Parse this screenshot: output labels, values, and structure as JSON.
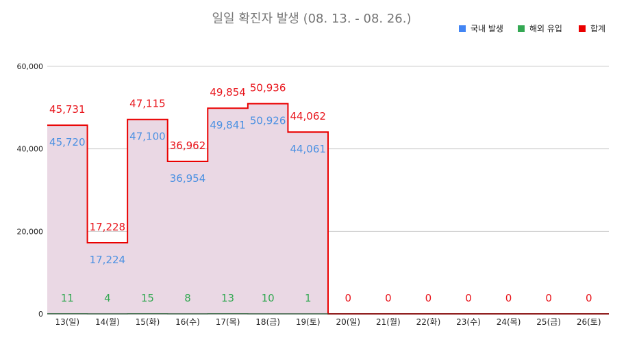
{
  "chart_data": {
    "type": "area",
    "title": "일일 확진자 발생 (08. 13. - 08. 26.)",
    "xlabel": "",
    "ylabel": "",
    "categories": [
      "13(일)",
      "14(월)",
      "15(화)",
      "16(수)",
      "17(목)",
      "18(금)",
      "19(토)",
      "20(일)",
      "21(월)",
      "22(화)",
      "23(수)",
      "24(목)",
      "25(금)",
      "26(토)"
    ],
    "ylim": [
      0,
      60000
    ],
    "yticks": [
      0,
      20000,
      40000,
      60000
    ],
    "ytick_labels": [
      "0",
      "20,000",
      "40,000",
      "60,000"
    ],
    "grid": true,
    "legend_position": "top-right",
    "series": [
      {
        "name": "국내 발생",
        "color": "#4285f4",
        "values": [
          45720,
          17224,
          47100,
          36954,
          49841,
          50926,
          44061,
          null,
          null,
          null,
          null,
          null,
          null,
          null
        ],
        "labels": [
          "45,720",
          "17,224",
          "47,100",
          "36,954",
          "49,841",
          "50,926",
          "44,061",
          "",
          "",
          "",
          "",
          "",
          "",
          ""
        ]
      },
      {
        "name": "해외 유입",
        "color": "#34a853",
        "values": [
          11,
          4,
          15,
          8,
          13,
          10,
          1,
          null,
          null,
          null,
          null,
          null,
          null,
          null
        ],
        "labels": [
          "11",
          "4",
          "15",
          "8",
          "13",
          "10",
          "1",
          "",
          "",
          "",
          "",
          "",
          "",
          ""
        ]
      },
      {
        "name": "합계",
        "color": "#ea0000",
        "values": [
          45731,
          17228,
          47115,
          36962,
          49854,
          50936,
          44062,
          0,
          0,
          0,
          0,
          0,
          0,
          0
        ],
        "labels": [
          "45,731",
          "17,228",
          "47,115",
          "36,962",
          "49,854",
          "50,936",
          "44,062",
          "0",
          "0",
          "0",
          "0",
          "0",
          "0",
          "0"
        ]
      }
    ]
  }
}
